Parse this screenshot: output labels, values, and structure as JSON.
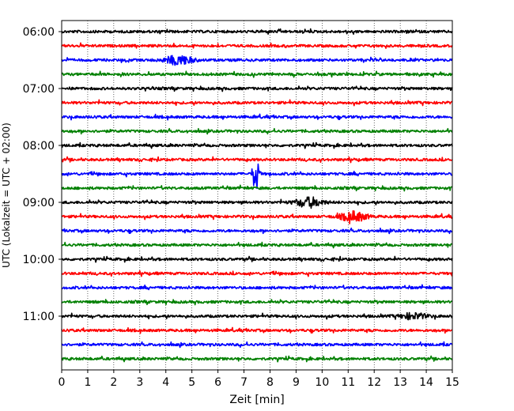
{
  "chart_data": {
    "type": "line",
    "title": "",
    "xlabel": "Zeit  [min]",
    "ylabel": "UTC (Lokalzeit = UTC + 02:00)",
    "xlim": [
      0,
      15
    ],
    "x_ticks": [
      "0",
      "1",
      "2",
      "3",
      "4",
      "5",
      "6",
      "7",
      "8",
      "9",
      "10",
      "11",
      "12",
      "13",
      "14",
      "15"
    ],
    "y_ticks": [
      "06:00",
      "07:00",
      "08:00",
      "09:00",
      "10:00",
      "11:00"
    ],
    "grid": "vertical dotted",
    "trace_interval_min": 15,
    "start_time": "06:00",
    "color_cycle": [
      "#000000",
      "#ff0000",
      "#0000ff",
      "#008000"
    ],
    "events": [
      {
        "row": 10,
        "time_min": 7.45,
        "amplitude": "large"
      },
      {
        "row": 12,
        "time_min": 9.5,
        "amplitude": "medium"
      },
      {
        "row": 13,
        "time_min": 11.2,
        "amplitude": "medium"
      },
      {
        "row": 2,
        "time_min": 4.5,
        "amplitude": "medium"
      },
      {
        "row": 20,
        "time_min": 13.5,
        "amplitude": "small"
      }
    ]
  }
}
